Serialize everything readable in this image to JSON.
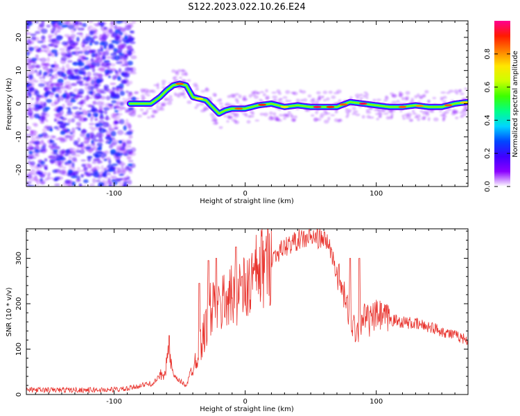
{
  "title": "S122.2023.022.10.26.E24",
  "colors": {
    "snr_line": "#e8302a",
    "colormap": [
      "#ffffff",
      "#8b00ff",
      "#3f00ff",
      "#0047ff",
      "#00d5ff",
      "#00ff88",
      "#3cff00",
      "#ccff00",
      "#ffe600",
      "#ff7f00",
      "#ff1a00",
      "#ff0090"
    ]
  },
  "chart_data": [
    {
      "type": "heatmap",
      "xlabel": "Height of straight line (km)",
      "ylabel": "Frequency (Hz)",
      "xlim": [
        -167,
        170
      ],
      "ylim": [
        -25,
        25
      ],
      "xticks": [
        -100,
        0,
        100
      ],
      "yticks": [
        -20,
        -10,
        0,
        10,
        20
      ],
      "noise_region_x": [
        -167,
        -85
      ],
      "ridge": {
        "x": [
          -88,
          -80,
          -72,
          -65,
          -60,
          -55,
          -50,
          -45,
          -40,
          -35,
          -30,
          -25,
          -20,
          -15,
          -10,
          -5,
          0,
          10,
          20,
          30,
          40,
          50,
          60,
          70,
          80,
          90,
          100,
          110,
          120,
          130,
          140,
          150,
          160,
          170
        ],
        "freq": [
          0,
          0,
          0,
          2,
          4,
          5.5,
          6,
          5.5,
          2,
          1.5,
          1,
          -1,
          -3,
          -2,
          -1.5,
          -1.5,
          -1.5,
          -0.5,
          0,
          -1,
          -0.5,
          -1,
          -1,
          -1,
          0.5,
          0,
          -0.5,
          -1,
          -1,
          -0.5,
          -1,
          -1,
          0,
          0.5
        ]
      },
      "colorbar": {
        "label": "Normalized spectral amplitude",
        "range": [
          0,
          1
        ],
        "ticks": [
          0.0,
          0.2,
          0.4,
          0.6,
          0.8
        ],
        "tick_labels": [
          "0.0",
          "0.2",
          "0.4",
          "0.6",
          "0.8"
        ]
      }
    },
    {
      "type": "line",
      "xlabel": "Height of straight line (km)",
      "ylabel": "SNR (10 * v/v)",
      "xlim": [
        -167,
        170
      ],
      "ylim": [
        0,
        365
      ],
      "xticks": [
        -100,
        0,
        100
      ],
      "yticks": [
        0,
        100,
        200,
        300
      ],
      "series": [
        {
          "x": [
            -167,
            -140,
            -110,
            -90,
            -80,
            -70,
            -62,
            -58,
            -55,
            -50,
            -45,
            -40,
            -35,
            -30,
            -25,
            -20,
            -15,
            -10,
            -5,
            0,
            5,
            10,
            20,
            30,
            40,
            50,
            55,
            60,
            63,
            66,
            70,
            75,
            80,
            85,
            90,
            95,
            100,
            110,
            120,
            130,
            140,
            150,
            160,
            170
          ],
          "values": [
            10,
            10,
            10,
            12,
            20,
            25,
            50,
            90,
            40,
            30,
            20,
            60,
            100,
            150,
            200,
            180,
            220,
            210,
            240,
            225,
            250,
            270,
            300,
            325,
            340,
            345,
            345,
            340,
            335,
            310,
            270,
            220,
            170,
            140,
            175,
            160,
            175,
            165,
            160,
            155,
            150,
            140,
            130,
            120
          ]
        }
      ],
      "spikes": [
        {
          "x": -58,
          "value": 130
        },
        {
          "x": -35,
          "value": 245
        },
        {
          "x": -28,
          "value": 295
        },
        {
          "x": -22,
          "value": 300
        },
        {
          "x": -7,
          "value": 325
        },
        {
          "x": 80,
          "value": 300
        },
        {
          "x": 87,
          "value": 300
        }
      ]
    }
  ]
}
